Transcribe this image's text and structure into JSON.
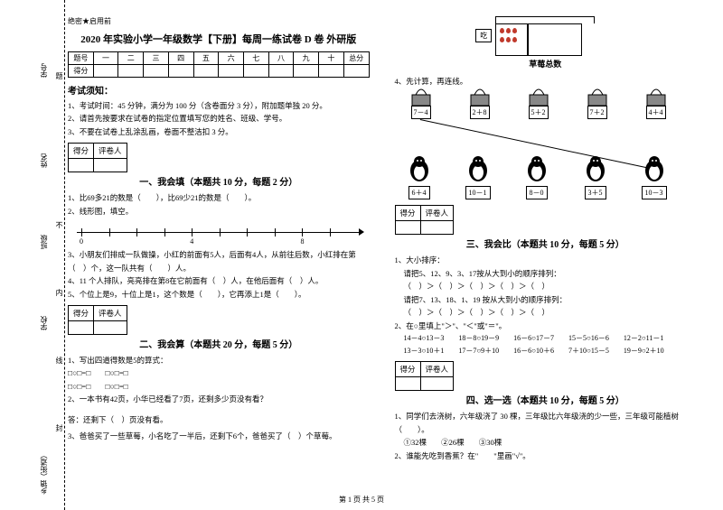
{
  "binding": {
    "labels": [
      "乡镇（街道）",
      "学校",
      "班级",
      "姓名",
      "学号"
    ],
    "side_hints": [
      "封",
      "线",
      "内",
      "不",
      "答",
      "题"
    ]
  },
  "confidential": "绝密★启用前",
  "title": "2020 年实验小学一年级数学【下册】每周一练试卷 D 卷 外研版",
  "score_headers": [
    "题号",
    "一",
    "二",
    "三",
    "四",
    "五",
    "六",
    "七",
    "八",
    "九",
    "十",
    "总分"
  ],
  "score_row_label": "得分",
  "notice_title": "考试须知：",
  "notices": [
    "1、考试时间：45 分钟，满分为 100 分（含卷面分 3 分），附加题单独 20 分。",
    "2、请首先按要求在试卷的指定位置填写您的姓名、班级、学号。",
    "3、不要在试卷上乱涂乱画，卷面不整洁扣 3 分。"
  ],
  "grader_cells": [
    "得分",
    "评卷人"
  ],
  "parts": {
    "p1_title": "一、我会填（本题共 10 分，每题 2 分）",
    "p1_q1": "1、比69多21的数是（　　），比69少21的数是（　　）。",
    "p1_q2": "2、线形图，填空。",
    "p1_q3": "3、小朋友们排成一队做操，小红的前面有5人，后面有4人，从前往后数，小红排在第（　）个，这一队共有（　　）人。",
    "p1_q4": "4、11 个人排队，亮亮排在第8在它前面有（　）人，在他后面有（　）人。",
    "p1_q5": "5、个位上是9，十位上是1，这个数是（　　），它再添上1是（　　）。",
    "p2_title": "二、我会算（本题共 20 分，每题 5 分）",
    "p2_q1": "1、写出四道得数是5的算式：",
    "p2_blank": "□○□=□",
    "p2_q2": "2、一本书有42页，小华已经看了7页，还剩多少页没有看？",
    "p2_a2": "答：还剩下（　）页没有看。",
    "p2_q3": "3、爸爸买了一些草莓，小名吃了一半后，还剩下6个，爸爸买了（　）个草莓。",
    "strawberry_eat": "吃",
    "strawberry_caption": "草莓总数",
    "p2_q4": "4、先计算，再连线。",
    "gifts": [
      "7－4",
      "2＋8",
      "5＋2",
      "7＋2",
      "4＋4"
    ],
    "penguins": [
      "6＋4",
      "10－1",
      "8－0",
      "3＋5",
      "10－3"
    ],
    "p3_title": "三、我会比（本题共 10 分，每题 5 分）",
    "p3_q1a": "1、大小排序：",
    "p3_q1b": "请把5、12、9、3、17按从大到小的顺序排列：",
    "p3_q1c": "（　）＞（　）＞（　）＞（　）＞（　）",
    "p3_q1d": "请把7、13、18、1、19 按从大到小的顺序排列：",
    "p3_q1e": "（　）＞（　）＞（　）＞（　）＞（　）",
    "p3_q2a": "2、在○里填上\"＞\"、\"＜\"或\"＝\"。",
    "p3_q2b": "14－4○13－3　　18－8○19－9　　16－6○17－7　　15－5○16－6　　12－2○11－1",
    "p3_q2c": "13－3○10＋1　　17－7○9＋10　　16－6○10＋6　　7＋10○15－5　　19－9○2＋10",
    "p4_title": "四、选一选（本题共 10 分，每题 5 分）",
    "p4_q1": "1、同学们去浇树，六年级浇了 30 棵，三年级比六年级浇的少一些，三年级可能植树（　　）。",
    "p4_opts": [
      "①32棵",
      "②26棵",
      "③30棵"
    ],
    "p4_q2": "2、谁能先吃到香蕉？在\"　　\"里画\"√\"。"
  },
  "numline": {
    "ticks": [
      0,
      1,
      2,
      3,
      4,
      5,
      6,
      7,
      8,
      9
    ],
    "labels": {
      "0": "0",
      "4": "4",
      "8": "8"
    }
  },
  "footer": "第 1 页 共 5 页"
}
